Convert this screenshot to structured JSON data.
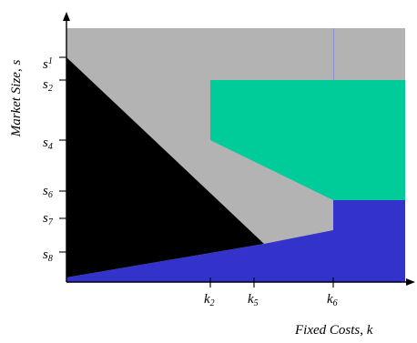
{
  "colors": {
    "background": "#ffffff",
    "gray_region": "#b3b3b3",
    "black_region": "#000000",
    "teal_region": "#00cc99",
    "blue_region": "#3333cc",
    "axis": "#000000",
    "divider_line": "#8f8fcf"
  },
  "y_axis": {
    "title": "Market Size, s",
    "ticks": [
      {
        "main": "s",
        "sub": "1"
      },
      {
        "main": "s",
        "sub": "2"
      },
      {
        "main": "s",
        "sub": "4"
      },
      {
        "main": "s",
        "sub": "6"
      },
      {
        "main": "s",
        "sub": "7"
      },
      {
        "main": "s",
        "sub": "8"
      }
    ]
  },
  "x_axis": {
    "title": "Fixed Costs, k",
    "ticks": [
      {
        "main": "k",
        "sub": "2"
      },
      {
        "main": "k",
        "sub": "5"
      },
      {
        "main": "k",
        "sub": "6"
      }
    ]
  },
  "regions": [
    "gray",
    "black",
    "teal",
    "blue"
  ]
}
